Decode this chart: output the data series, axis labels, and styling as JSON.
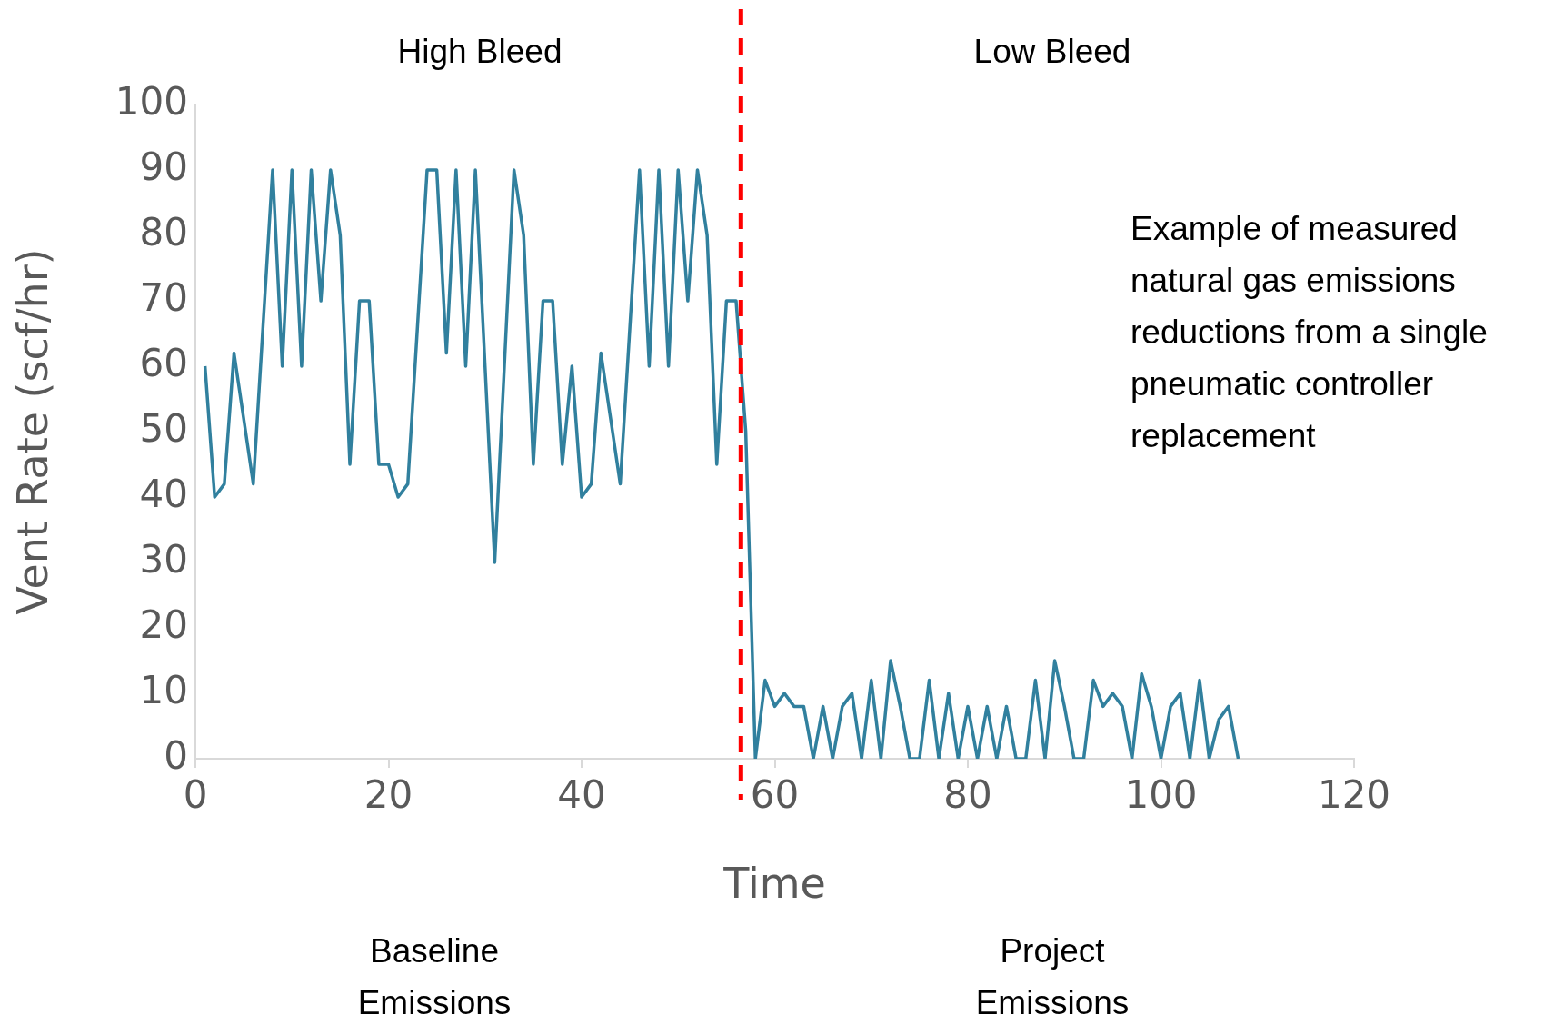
{
  "chart_data": {
    "type": "line",
    "xlabel": "Time",
    "ylabel": "Vent Rate (scf/hr)",
    "x": [
      1,
      2,
      3,
      4,
      5,
      6,
      7,
      8,
      9,
      10,
      11,
      12,
      13,
      14,
      15,
      16,
      17,
      18,
      19,
      20,
      21,
      22,
      23,
      24,
      25,
      26,
      27,
      28,
      29,
      30,
      31,
      32,
      33,
      34,
      35,
      36,
      37,
      38,
      39,
      40,
      41,
      42,
      43,
      44,
      45,
      46,
      47,
      48,
      49,
      50,
      51,
      52,
      53,
      54,
      55,
      56,
      57,
      58,
      59,
      60,
      61,
      62,
      63,
      64,
      65,
      66,
      67,
      68,
      69,
      70,
      71,
      72,
      73,
      74,
      75,
      76,
      77,
      78,
      79,
      80,
      81,
      82,
      83,
      84,
      85,
      86,
      87,
      88,
      89,
      90,
      91,
      92,
      93,
      94,
      95,
      96,
      97,
      98,
      99,
      100,
      101,
      102,
      103,
      104,
      105,
      106,
      107,
      108
    ],
    "series": [
      {
        "color": "#31809e",
        "values": [
          60,
          40,
          42,
          62,
          52,
          42,
          66,
          90,
          60,
          90,
          60,
          90,
          70,
          90,
          80,
          45,
          70,
          70,
          45,
          45,
          40,
          42,
          66,
          90,
          90,
          62,
          90,
          60,
          90,
          60,
          30,
          60,
          90,
          80,
          45,
          70,
          70,
          45,
          60,
          40,
          42,
          62,
          52,
          42,
          66,
          90,
          60,
          90,
          60,
          90,
          70,
          90,
          80,
          45,
          70,
          70,
          50,
          0,
          12,
          8,
          10,
          8,
          8,
          0,
          8,
          0,
          8,
          10,
          0,
          12,
          0,
          15,
          8,
          0,
          0,
          12,
          0,
          10,
          0,
          8,
          0,
          8,
          0,
          8,
          0,
          0,
          12,
          0,
          15,
          8,
          0,
          0,
          12,
          8,
          10,
          8,
          0,
          13,
          8,
          0,
          8,
          10,
          0,
          12,
          0,
          6,
          8,
          0
        ]
      }
    ],
    "xlim": [
      0,
      120
    ],
    "xticks": [
      0,
      20,
      40,
      60,
      80,
      100,
      120
    ],
    "ylim": [
      0,
      100
    ],
    "yticks": [
      0,
      10,
      20,
      30,
      40,
      50,
      60,
      70,
      80,
      90,
      100
    ],
    "grid": false,
    "legend": false,
    "marker": "none",
    "line_style": "solid",
    "ref_lines": [
      {
        "axis": "x",
        "value": 56.5,
        "color": "#ff0000",
        "line_style": "dashed"
      }
    ],
    "annotations": [
      "High Bleed",
      "Low Bleed",
      "Baseline Emissions",
      "Project Emissions",
      "Example of measured natural gas emissions reductions from a single pneumatic controller replacement"
    ]
  }
}
